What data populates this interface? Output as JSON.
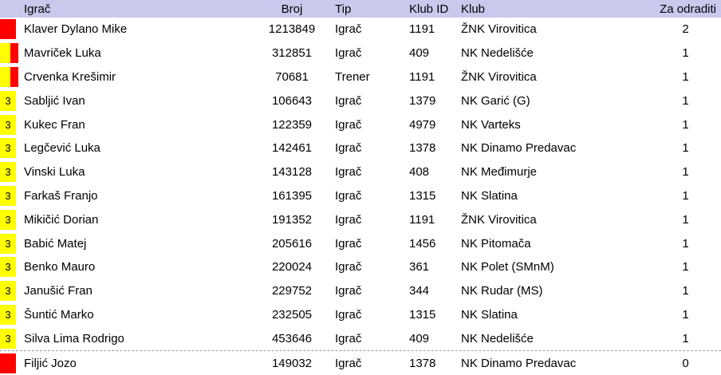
{
  "table": {
    "columns": {
      "name": "Igrač",
      "number": "Broj",
      "type": "Tip",
      "club_id": "Klub ID",
      "club": "Klub",
      "remaining": "Za odraditi"
    },
    "header_bg": "#c9c9ed",
    "card_colors": {
      "red": "#ff0000",
      "yellow": "#ffff00"
    },
    "separator_color": "#9a9a9a"
  },
  "rows": [
    {
      "indicator": "red",
      "badge": "",
      "name": "Klaver Dylano Mike",
      "number": "1213849",
      "type": "Igrač",
      "club_id": "1191",
      "club": "ŽNK Virovitica",
      "remaining": "2",
      "separator_above": false
    },
    {
      "indicator": "yellow-red",
      "badge": "",
      "name": "Mavriček Luka",
      "number": "312851",
      "type": "Igrač",
      "club_id": "409",
      "club": "NK Nedelišće",
      "remaining": "1",
      "separator_above": false
    },
    {
      "indicator": "yellow-red",
      "badge": "",
      "name": "Crvenka Krešimir",
      "number": "70681",
      "type": "Trener",
      "club_id": "1191",
      "club": "ŽNK Virovitica",
      "remaining": "1",
      "separator_above": false
    },
    {
      "indicator": "yellow-3",
      "badge": "3",
      "name": "Sabljić Ivan",
      "number": "106643",
      "type": "Igrač",
      "club_id": "1379",
      "club": "NK Garić (G)",
      "remaining": "1",
      "separator_above": false
    },
    {
      "indicator": "yellow-3",
      "badge": "3",
      "name": "Kukec Fran",
      "number": "122359",
      "type": "Igrač",
      "club_id": "4979",
      "club": "NK Varteks",
      "remaining": "1",
      "separator_above": false
    },
    {
      "indicator": "yellow-3",
      "badge": "3",
      "name": "Legčević Luka",
      "number": "142461",
      "type": "Igrač",
      "club_id": "1378",
      "club": "NK Dinamo Predavac",
      "remaining": "1",
      "separator_above": false
    },
    {
      "indicator": "yellow-3",
      "badge": "3",
      "name": "Vinski Luka",
      "number": "143128",
      "type": "Igrač",
      "club_id": "408",
      "club": "NK Međimurje",
      "remaining": "1",
      "separator_above": false
    },
    {
      "indicator": "yellow-3",
      "badge": "3",
      "name": "Farkaš Franjo",
      "number": "161395",
      "type": "Igrač",
      "club_id": "1315",
      "club": "NK Slatina",
      "remaining": "1",
      "separator_above": false
    },
    {
      "indicator": "yellow-3",
      "badge": "3",
      "name": "Mikičić Dorian",
      "number": "191352",
      "type": "Igrač",
      "club_id": "1191",
      "club": "ŽNK Virovitica",
      "remaining": "1",
      "separator_above": false
    },
    {
      "indicator": "yellow-3",
      "badge": "3",
      "name": "Babić Matej",
      "number": "205616",
      "type": "Igrač",
      "club_id": "1456",
      "club": "NK Pitomača",
      "remaining": "1",
      "separator_above": false
    },
    {
      "indicator": "yellow-3",
      "badge": "3",
      "name": "Benko Mauro",
      "number": "220024",
      "type": "Igrač",
      "club_id": "361",
      "club": "NK Polet (SMnM)",
      "remaining": "1",
      "separator_above": false
    },
    {
      "indicator": "yellow-3",
      "badge": "3",
      "name": "Janušić Fran",
      "number": "229752",
      "type": "Igrač",
      "club_id": "344",
      "club": "NK Rudar (MS)",
      "remaining": "1",
      "separator_above": false
    },
    {
      "indicator": "yellow-3",
      "badge": "3",
      "name": "Šuntić Marko",
      "number": "232505",
      "type": "Igrač",
      "club_id": "1315",
      "club": "NK Slatina",
      "remaining": "1",
      "separator_above": false
    },
    {
      "indicator": "yellow-3",
      "badge": "3",
      "name": "Silva Lima Rodrigo",
      "number": "453646",
      "type": "Igrač",
      "club_id": "409",
      "club": "NK Nedelišće",
      "remaining": "1",
      "separator_above": false
    },
    {
      "indicator": "red",
      "badge": "",
      "name": "Filjić Jozo",
      "number": "149032",
      "type": "Igrač",
      "club_id": "1378",
      "club": "NK Dinamo Predavac",
      "remaining": "0",
      "separator_above": true
    }
  ]
}
